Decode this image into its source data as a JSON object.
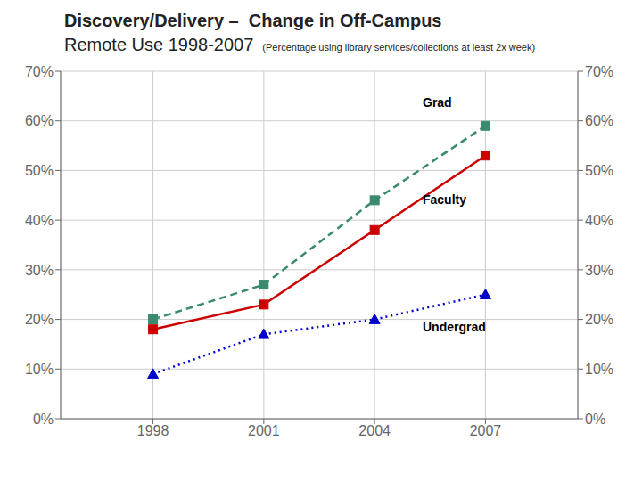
{
  "chart_data": {
    "type": "line",
    "title": [
      "Discovery/Delivery –  Change in Off-Campus",
      "Remote Use 1998-2007"
    ],
    "subtitle": "(Percentage using library services/collections at least 2x week)",
    "x": [
      1998,
      2001,
      2004,
      2007
    ],
    "series": [
      {
        "color": "#3a8a6e",
        "line_style": "dashed",
        "marker": "square",
        "values": [
          0.2,
          0.27,
          0.44,
          0.59
        ]
      },
      {
        "color": "#cc0000",
        "line_style": "solid",
        "marker": "square",
        "values": [
          0.18,
          0.23,
          0.38,
          0.53
        ]
      },
      {
        "color": "#0000cc",
        "line_style": "dotted",
        "marker": "triangle",
        "values": [
          0.09,
          0.17,
          0.2,
          0.25
        ]
      }
    ],
    "xlim": [
      1995.5,
      2009.5
    ],
    "xticks": [
      1998,
      2001,
      2004,
      2007
    ],
    "ylim": [
      0,
      0.7
    ],
    "yticks": [
      {
        "value": 0,
        "label": "0%"
      },
      {
        "value": 0.1,
        "label": "10%"
      },
      {
        "value": 0.2,
        "label": "20%"
      },
      {
        "value": 0.3,
        "label": "30%"
      },
      {
        "value": 0.4,
        "label": "40%"
      },
      {
        "value": 0.5,
        "label": "50%"
      },
      {
        "value": 0.6,
        "label": "60%"
      },
      {
        "value": 0.7,
        "label": "70%"
      }
    ],
    "y2lim": [
      0,
      0.7
    ],
    "y2ticks": [
      {
        "value": 0,
        "label": "0%"
      },
      {
        "value": 0.1,
        "label": "10%"
      },
      {
        "value": 0.2,
        "label": "20%"
      },
      {
        "value": 0.3,
        "label": "30%"
      },
      {
        "value": 0.4,
        "label": "40%"
      },
      {
        "value": 0.5,
        "label": "50%"
      },
      {
        "value": 0.6,
        "label": "60%"
      },
      {
        "value": 0.7,
        "label": "70%"
      }
    ],
    "grid": true,
    "annotations": [
      {
        "text": "Grad",
        "x": 2005.3,
        "y": 0.625
      },
      {
        "text": "Faculty",
        "x": 2005.3,
        "y": 0.455
      },
      {
        "text": "Undergrad",
        "x": 2005.3,
        "y": 0.198
      }
    ]
  }
}
